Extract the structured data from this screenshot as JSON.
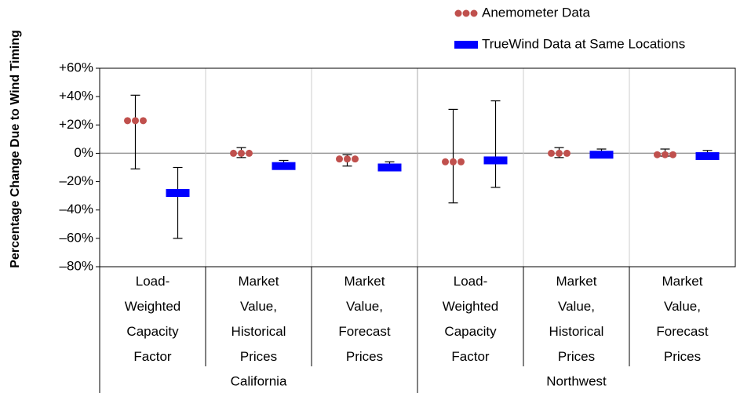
{
  "chart_data": {
    "type": "errorbar",
    "y_label": "Percentage Change Due to Wind Timing",
    "groups": [
      {
        "name": "California",
        "categories": [
          [
            "Load-",
            "Weighted",
            "Capacity",
            "Factor"
          ],
          [
            "Market",
            "Value,",
            "Historical",
            "Prices"
          ],
          [
            "Market",
            "Value,",
            "Forecast",
            "Prices"
          ]
        ]
      },
      {
        "name": "Northwest",
        "categories": [
          [
            "Load-",
            "Weighted",
            "Capacity",
            "Factor"
          ],
          [
            "Market",
            "Value,",
            "Historical",
            "Prices"
          ],
          [
            "Market",
            "Value,",
            "Forecast",
            "Prices"
          ]
        ]
      }
    ],
    "series": [
      {
        "name": "Anemometer Data",
        "color": "#c0504d",
        "marker": "dots",
        "values": [
          23,
          0,
          -4,
          -6,
          0,
          -1
        ],
        "low": [
          -11,
          -3,
          -9,
          -35,
          -3,
          -2
        ],
        "high": [
          41,
          4,
          -1,
          31,
          4,
          3
        ]
      },
      {
        "name": "TrueWind Data at Same Locations",
        "color": "#0000ff",
        "marker": "bar",
        "values": [
          -28,
          -9,
          -10,
          -5,
          -1,
          -2
        ],
        "low": [
          -60,
          -11,
          -12,
          -24,
          -3,
          -4
        ],
        "high": [
          -10,
          -5,
          -6,
          37,
          3,
          2
        ]
      }
    ],
    "ylim": [
      -80,
      60
    ],
    "yticks": [
      {
        "value": -80,
        "label": "–80%"
      },
      {
        "value": -60,
        "label": "–60%"
      },
      {
        "value": -40,
        "label": "–40%"
      },
      {
        "value": -20,
        "label": "–20%"
      },
      {
        "value": 0,
        "label": "0%"
      },
      {
        "value": 20,
        "label": "+20%"
      },
      {
        "value": 40,
        "label": "+40%"
      },
      {
        "value": 60,
        "label": "+60%"
      }
    ],
    "grid": true
  }
}
